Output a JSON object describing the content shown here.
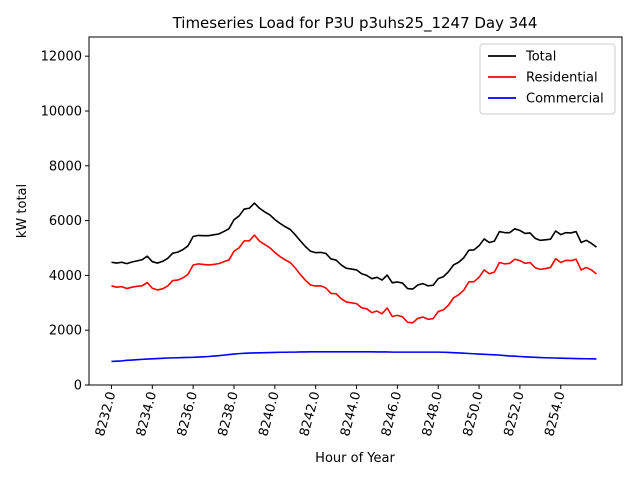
{
  "chart_data": {
    "type": "line",
    "title": "Timeseries Load for P3U p3uhs25_1247  Day 344",
    "xlabel": "Hour of Year",
    "ylabel": "kW total",
    "xlim": [
      8230.9,
      8257.0
    ],
    "ylim": [
      0,
      12700
    ],
    "x_ticks": [
      8232.0,
      8234.0,
      8236.0,
      8238.0,
      8240.0,
      8242.0,
      8244.0,
      8246.0,
      8248.0,
      8250.0,
      8252.0,
      8254.0
    ],
    "x_tick_labels": [
      "8232.0",
      "8234.0",
      "8236.0",
      "8238.0",
      "8240.0",
      "8242.0",
      "8244.0",
      "8246.0",
      "8248.0",
      "8250.0",
      "8252.0",
      "8254.0"
    ],
    "y_ticks": [
      0,
      2000,
      4000,
      6000,
      8000,
      10000,
      12000
    ],
    "y_tick_labels": [
      "0",
      "2000",
      "4000",
      "6000",
      "8000",
      "10000",
      "12000"
    ],
    "grid": false,
    "legend_position": "top-right",
    "x": [
      8232.0,
      8232.25,
      8232.5,
      8232.75,
      8233.0,
      8233.25,
      8233.5,
      8233.75,
      8234.0,
      8234.25,
      8234.5,
      8234.75,
      8235.0,
      8235.25,
      8235.5,
      8235.75,
      8236.0,
      8236.25,
      8236.5,
      8236.75,
      8237.0,
      8237.25,
      8237.5,
      8237.75,
      8238.0,
      8238.25,
      8238.5,
      8238.75,
      8239.0,
      8239.25,
      8239.5,
      8239.75,
      8240.0,
      8240.25,
      8240.5,
      8240.75,
      8241.0,
      8241.25,
      8241.5,
      8241.75,
      8242.0,
      8242.25,
      8242.5,
      8242.75,
      8243.0,
      8243.25,
      8243.5,
      8243.75,
      8244.0,
      8244.25,
      8244.5,
      8244.75,
      8245.0,
      8245.25,
      8245.5,
      8245.75,
      8246.0,
      8246.25,
      8246.5,
      8246.75,
      8247.0,
      8247.25,
      8247.5,
      8247.75,
      8248.0,
      8248.25,
      8248.5,
      8248.75,
      8249.0,
      8249.25,
      8249.5,
      8249.75,
      8250.0,
      8250.25,
      8250.5,
      8250.75,
      8251.0,
      8251.25,
      8251.5,
      8251.75,
      8252.0,
      8252.25,
      8252.5,
      8252.75,
      8253.0,
      8253.25,
      8253.5,
      8253.75,
      8254.0,
      8254.25,
      8254.5,
      8254.75,
      8255.0,
      8255.25,
      8255.5,
      8255.75
    ],
    "series": [
      {
        "name": "Total",
        "color": "#000000",
        "values": [
          4480,
          4450,
          4480,
          4430,
          4490,
          4530,
          4570,
          4700,
          4500,
          4450,
          4510,
          4620,
          4810,
          4850,
          4940,
          5080,
          5420,
          5460,
          5450,
          5450,
          5480,
          5510,
          5600,
          5700,
          6030,
          6170,
          6420,
          6450,
          6640,
          6450,
          6320,
          6210,
          6040,
          5900,
          5780,
          5680,
          5480,
          5260,
          5050,
          4880,
          4830,
          4840,
          4800,
          4600,
          4560,
          4380,
          4260,
          4230,
          4200,
          4060,
          4000,
          3880,
          3930,
          3830,
          4010,
          3730,
          3760,
          3720,
          3520,
          3500,
          3650,
          3700,
          3620,
          3640,
          3880,
          3950,
          4130,
          4380,
          4480,
          4640,
          4920,
          4930,
          5080,
          5330,
          5200,
          5250,
          5600,
          5560,
          5560,
          5700,
          5640,
          5530,
          5550,
          5350,
          5280,
          5300,
          5320,
          5620,
          5490,
          5560,
          5550,
          5600,
          5200,
          5280,
          5170,
          5030
        ]
      },
      {
        "name": "Residential",
        "color": "#ff0000",
        "values": [
          3620,
          3570,
          3590,
          3520,
          3570,
          3600,
          3620,
          3740,
          3530,
          3470,
          3510,
          3610,
          3810,
          3830,
          3910,
          4040,
          4380,
          4420,
          4400,
          4380,
          4400,
          4430,
          4500,
          4560,
          4880,
          5010,
          5260,
          5260,
          5470,
          5250,
          5130,
          5010,
          4840,
          4690,
          4570,
          4470,
          4270,
          4030,
          3820,
          3650,
          3610,
          3620,
          3540,
          3340,
          3330,
          3150,
          3030,
          3000,
          2970,
          2820,
          2780,
          2640,
          2700,
          2600,
          2810,
          2500,
          2540,
          2490,
          2290,
          2270,
          2430,
          2480,
          2400,
          2420,
          2680,
          2740,
          2910,
          3180,
          3290,
          3460,
          3760,
          3770,
          3930,
          4200,
          4060,
          4120,
          4470,
          4420,
          4440,
          4590,
          4540,
          4440,
          4470,
          4280,
          4220,
          4250,
          4290,
          4610,
          4470,
          4550,
          4540,
          4590,
          4200,
          4290,
          4200,
          4050
        ]
      },
      {
        "name": "Commercial",
        "color": "#0000ff",
        "values": [
          860,
          870,
          880,
          900,
          910,
          925,
          935,
          945,
          955,
          965,
          975,
          985,
          990,
          995,
          1000,
          1005,
          1010,
          1020,
          1030,
          1040,
          1055,
          1070,
          1090,
          1110,
          1130,
          1145,
          1155,
          1165,
          1170,
          1175,
          1180,
          1185,
          1190,
          1195,
          1195,
          1200,
          1200,
          1205,
          1205,
          1210,
          1210,
          1210,
          1210,
          1210,
          1210,
          1210,
          1210,
          1210,
          1210,
          1210,
          1210,
          1210,
          1205,
          1205,
          1205,
          1200,
          1200,
          1200,
          1200,
          1200,
          1200,
          1200,
          1200,
          1200,
          1200,
          1195,
          1190,
          1180,
          1170,
          1160,
          1150,
          1140,
          1130,
          1120,
          1110,
          1100,
          1090,
          1075,
          1060,
          1050,
          1040,
          1030,
          1020,
          1010,
          1000,
          995,
          990,
          985,
          980,
          975,
          970,
          965,
          960,
          958,
          955,
          952
        ]
      }
    ]
  }
}
